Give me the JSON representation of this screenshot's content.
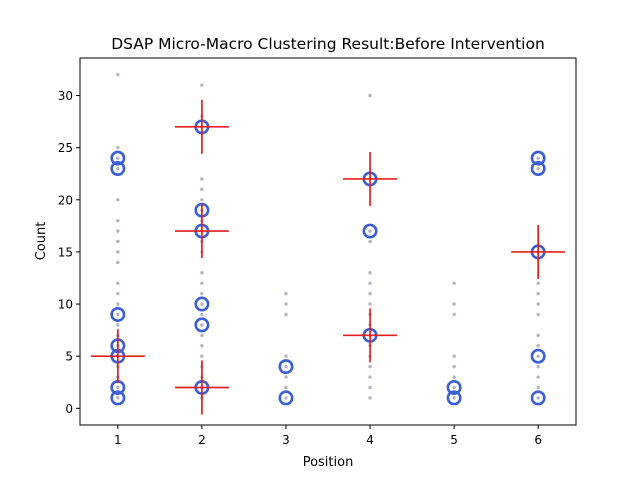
{
  "chart_data": {
    "type": "scatter",
    "title": "DSAP Micro-Macro Clustering Result:Before Intervention",
    "xlabel": "Position",
    "ylabel": "Count",
    "xlim": [
      0.55,
      6.45
    ],
    "ylim": [
      -1.6,
      33.6
    ],
    "x_ticks": [
      1,
      2,
      3,
      4,
      5,
      6
    ],
    "y_ticks": [
      0,
      5,
      10,
      15,
      20,
      25,
      30
    ],
    "grid": false,
    "colors": {
      "raw_points": "#b3b3c2",
      "micro_clusters": "#3b5fd6",
      "macro_clusters": "#e32020"
    },
    "raw_points": [
      {
        "x": 1,
        "y": [
          32,
          25,
          24,
          23,
          20,
          18,
          17,
          16,
          15,
          14,
          12,
          11,
          10,
          9,
          8,
          7,
          6,
          5,
          4,
          3,
          2,
          1
        ]
      },
      {
        "x": 2,
        "y": [
          31,
          28,
          27,
          22,
          21,
          20,
          19,
          18,
          17,
          16,
          15,
          13,
          12,
          11,
          10,
          9,
          8,
          7,
          6,
          5,
          4,
          3,
          2,
          1
        ]
      },
      {
        "x": 3,
        "y": [
          11,
          10,
          9,
          5,
          4,
          3,
          2,
          1
        ]
      },
      {
        "x": 4,
        "y": [
          30,
          22,
          17,
          16,
          13,
          12,
          11,
          10,
          9,
          8,
          7,
          6,
          5,
          4,
          3,
          2,
          1
        ]
      },
      {
        "x": 5,
        "y": [
          12,
          10,
          9,
          5,
          4,
          3,
          2,
          1
        ]
      },
      {
        "x": 6,
        "y": [
          24,
          23,
          15,
          12,
          11,
          10,
          9,
          7,
          6,
          5,
          4,
          3,
          2,
          1
        ]
      }
    ],
    "micro_clusters": [
      {
        "x": 1,
        "y": 24
      },
      {
        "x": 1,
        "y": 23
      },
      {
        "x": 1,
        "y": 9
      },
      {
        "x": 1,
        "y": 6
      },
      {
        "x": 1,
        "y": 5
      },
      {
        "x": 1,
        "y": 2
      },
      {
        "x": 1,
        "y": 1
      },
      {
        "x": 2,
        "y": 27
      },
      {
        "x": 2,
        "y": 19
      },
      {
        "x": 2,
        "y": 17
      },
      {
        "x": 2,
        "y": 10
      },
      {
        "x": 2,
        "y": 8
      },
      {
        "x": 2,
        "y": 2
      },
      {
        "x": 3,
        "y": 4
      },
      {
        "x": 3,
        "y": 1
      },
      {
        "x": 4,
        "y": 22
      },
      {
        "x": 4,
        "y": 17
      },
      {
        "x": 4,
        "y": 7
      },
      {
        "x": 5,
        "y": 2
      },
      {
        "x": 5,
        "y": 1
      },
      {
        "x": 6,
        "y": 24
      },
      {
        "x": 6,
        "y": 23
      },
      {
        "x": 6,
        "y": 15
      },
      {
        "x": 6,
        "y": 5
      },
      {
        "x": 6,
        "y": 1
      }
    ],
    "macro_clusters": [
      {
        "x": 1,
        "y": 5
      },
      {
        "x": 2,
        "y": 27
      },
      {
        "x": 2,
        "y": 17
      },
      {
        "x": 2,
        "y": 2
      },
      {
        "x": 4,
        "y": 22
      },
      {
        "x": 4,
        "y": 7
      },
      {
        "x": 6,
        "y": 15
      }
    ]
  }
}
